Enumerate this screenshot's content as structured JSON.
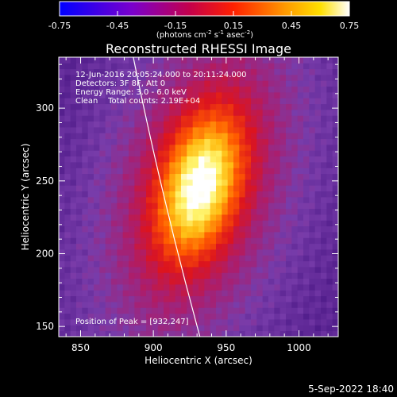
{
  "chart_data": {
    "type": "heatmap",
    "title": "Reconstructed RHESSI Image",
    "xlabel": "Heliocentric X (arcsec)",
    "ylabel": "Heliocentric Y (arcsec)",
    "xlim": [
      835,
      1027
    ],
    "ylim": [
      143,
      335
    ],
    "xticks": [
      850,
      900,
      950,
      1000
    ],
    "yticks": [
      150,
      200,
      250,
      300
    ],
    "colorbar": {
      "range": [
        -0.75,
        0.75
      ],
      "ticks": [
        "-0.75",
        "-0.45",
        "-0.15",
        "0.15",
        "0.45",
        "0.75"
      ],
      "unit_text": "(photons cm",
      "unit_sup1": "-2",
      "unit_mid": " s",
      "unit_sup2": "-1",
      "unit_end": " asec",
      "unit_sup3": "-2",
      "unit_close": ")"
    },
    "annotations": {
      "time": "12-Jun-2016 20:05:24.000 to 20:11:24.000",
      "detectors": "Detectors: 3F 8F, Att 0",
      "energy": "Energy Range: 3.0 - 6.0 keV",
      "clean": "Clean    Total counts: 2.19E+04",
      "peak": "Position of Peak = [932,247]"
    },
    "peak": [
      932,
      247
    ],
    "source_sigma": [
      19,
      36
    ],
    "source_peak_value": 0.75,
    "background_value": -0.4,
    "limb": {
      "at_y_336": 886,
      "at_y_143": 932
    }
  },
  "footer": {
    "date": "5-Sep-2022 18:40"
  }
}
